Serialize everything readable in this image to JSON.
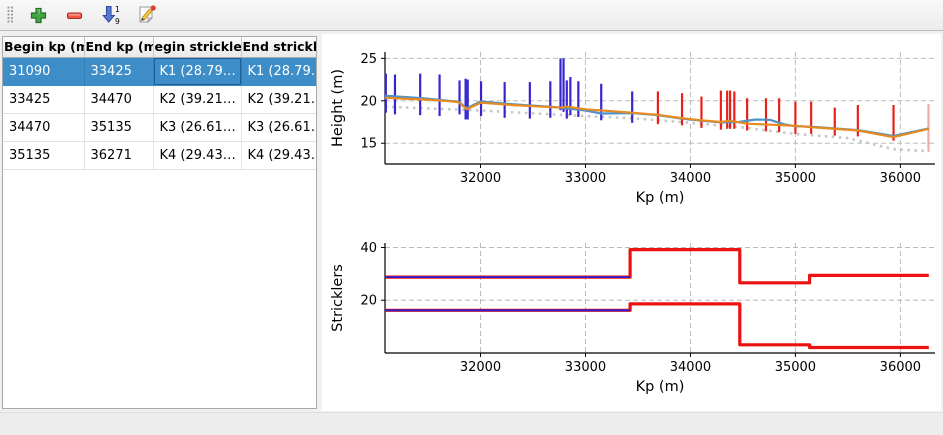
{
  "toolbar": {
    "buttons": [
      {
        "label": "add-zone",
        "icon": "plus-icon"
      },
      {
        "label": "remove-zone",
        "icon": "minus-icon"
      },
      {
        "label": "sort-numeric",
        "icon": "sort-numeric-down-icon"
      },
      {
        "label": "edit",
        "icon": "edit-pencil-icon"
      }
    ]
  },
  "table": {
    "columns": [
      "Begin kp (m)",
      "End kp (m)",
      "egin strickle",
      "End strickler"
    ],
    "rows": [
      [
        "31090",
        "33425",
        "K1 (28.79…",
        "K1 (28.79…"
      ],
      [
        "33425",
        "34470",
        "K2 (39.21…",
        "K2 (39.21…"
      ],
      [
        "34470",
        "35135",
        "K3 (26.61…",
        "K3 (26.61…"
      ],
      [
        "35135",
        "36271",
        "K4 (29.43…",
        "K4 (29.43…"
      ]
    ],
    "selected_row": 0
  },
  "colors": {
    "selection_blue": "#3d8dc8",
    "stem_blue": "#3726cf",
    "stem_red": "#e7211a",
    "stem_pink": "#f2a8a8",
    "line_blue": "#4e92c8",
    "line_orange": "#e78a20",
    "line_gray": "#c7c7c7",
    "strickler_red": "#ec1212",
    "strickler_blue": "#2b1fd6",
    "grid": "#bbbbbb"
  },
  "chart_data": [
    {
      "type": "line",
      "title": "",
      "xlabel": "Kp (m)",
      "ylabel": "Height (m)",
      "xlim": [
        31090,
        36330
      ],
      "ylim": [
        12.55,
        25.75
      ],
      "xticks": [
        32000,
        33000,
        34000,
        35000,
        36000
      ],
      "yticks": [
        15,
        20,
        25
      ],
      "grid": true,
      "legend": "none",
      "series": [
        {
          "name": "bed-dotted-gray",
          "type": "line",
          "style": "dotted",
          "points": [
            [
              31090,
              19.3
            ],
            [
              32000,
              18.85
            ],
            [
              33000,
              18.2
            ],
            [
              33445,
              17.95
            ],
            [
              34000,
              17.4
            ],
            [
              34470,
              16.9
            ],
            [
              35000,
              16.1
            ],
            [
              35500,
              15.6
            ],
            [
              35935,
              14.3
            ],
            [
              36271,
              14.05
            ]
          ]
        },
        {
          "name": "stems-selected-zone",
          "type": "stem",
          "color_key": "stem_blue",
          "stems": [
            [
              31098,
              18.6,
              23.2
            ],
            [
              31185,
              18.4,
              23.1
            ],
            [
              31425,
              18.3,
              23.2
            ],
            [
              31610,
              18.2,
              23.1
            ],
            [
              31800,
              18.4,
              22.4
            ],
            [
              31858,
              17.8,
              22.6
            ],
            [
              31878,
              17.8,
              22.5
            ],
            [
              32005,
              18.2,
              22.3
            ],
            [
              32230,
              18.0,
              22.2
            ],
            [
              32470,
              17.9,
              22.2
            ],
            [
              32665,
              18.0,
              22.3
            ],
            [
              32762,
              18.9,
              25.0
            ],
            [
              32791,
              18.7,
              25.0
            ],
            [
              32822,
              17.9,
              22.4
            ],
            [
              32856,
              18.3,
              22.8
            ],
            [
              32932,
              18.1,
              22.3
            ],
            [
              33150,
              17.7,
              22.0
            ],
            [
              33445,
              17.4,
              21.1
            ]
          ]
        },
        {
          "name": "stems-other-zones",
          "type": "stem",
          "color_key": "stem_red",
          "stems": [
            [
              33690,
              17.25,
              21.1
            ],
            [
              33920,
              17.1,
              20.9
            ],
            [
              34105,
              16.8,
              20.5
            ],
            [
              34290,
              16.6,
              21.2
            ],
            [
              34350,
              16.7,
              21.2
            ],
            [
              34378,
              16.7,
              21.2
            ],
            [
              34418,
              16.7,
              21.1
            ],
            [
              34540,
              16.5,
              20.3
            ],
            [
              34720,
              16.4,
              20.3
            ],
            [
              34845,
              16.3,
              20.3
            ],
            [
              35000,
              16.1,
              19.9
            ],
            [
              35150,
              16.1,
              19.9
            ],
            [
              35375,
              15.9,
              19.2
            ],
            [
              35595,
              15.8,
              19.5
            ],
            [
              35935,
              15.3,
              19.5
            ]
          ]
        },
        {
          "name": "stem-last-faint",
          "type": "stem",
          "color_key": "stem_pink",
          "stems": [
            [
              36268,
              14.0,
              19.6
            ]
          ]
        },
        {
          "name": "height-line-blue",
          "type": "line",
          "color_key": "line_blue",
          "points": [
            [
              31090,
              20.6
            ],
            [
              31450,
              20.3
            ],
            [
              31700,
              20.0
            ],
            [
              31790,
              19.9
            ],
            [
              31868,
              19.1
            ],
            [
              32000,
              19.92
            ],
            [
              32300,
              19.6
            ],
            [
              32600,
              19.35
            ],
            [
              32770,
              19.2
            ],
            [
              33000,
              18.85
            ],
            [
              33150,
              18.5
            ],
            [
              33445,
              18.55
            ],
            [
              33690,
              18.3
            ],
            [
              33920,
              17.9
            ],
            [
              34105,
              17.65
            ],
            [
              34290,
              17.45
            ],
            [
              34460,
              17.5
            ],
            [
              34620,
              17.8
            ],
            [
              34760,
              17.75
            ],
            [
              34900,
              17.2
            ],
            [
              35000,
              17.0
            ],
            [
              35150,
              16.95
            ],
            [
              35595,
              16.55
            ],
            [
              35935,
              15.85
            ],
            [
              36271,
              16.75
            ]
          ]
        },
        {
          "name": "height-line-orange",
          "type": "line",
          "color_key": "line_orange",
          "points": [
            [
              31090,
              20.35
            ],
            [
              31450,
              20.15
            ],
            [
              31700,
              19.95
            ],
            [
              31790,
              19.85
            ],
            [
              31868,
              19.0
            ],
            [
              32000,
              19.78
            ],
            [
              32300,
              19.5
            ],
            [
              32600,
              19.3
            ],
            [
              32770,
              19.18
            ],
            [
              32820,
              19.3
            ],
            [
              33000,
              19.0
            ],
            [
              33445,
              18.6
            ],
            [
              33690,
              18.35
            ],
            [
              33920,
              17.95
            ],
            [
              34105,
              17.7
            ],
            [
              34290,
              17.5
            ],
            [
              34375,
              17.65
            ],
            [
              34540,
              17.3
            ],
            [
              34845,
              17.15
            ],
            [
              35000,
              17.05
            ],
            [
              35150,
              16.9
            ],
            [
              35595,
              16.5
            ],
            [
              35935,
              15.72
            ],
            [
              36271,
              16.7
            ]
          ]
        }
      ]
    },
    {
      "type": "step",
      "title": "",
      "xlabel": "Kp (m)",
      "ylabel": "Stricklers",
      "xlim": [
        31090,
        36330
      ],
      "ylim": [
        0,
        41.7
      ],
      "xticks": [
        32000,
        33000,
        34000,
        35000,
        36000
      ],
      "yticks": [
        20,
        40
      ],
      "grid": true,
      "zones": [
        {
          "begin": 31090,
          "end": 33425,
          "k_minor": 28.79,
          "k_major": 16.2,
          "selected": true
        },
        {
          "begin": 33425,
          "end": 34470,
          "k_minor": 39.21,
          "k_major": 18.6,
          "selected": false
        },
        {
          "begin": 34470,
          "end": 35135,
          "k_minor": 26.61,
          "k_major": 3.1,
          "selected": false
        },
        {
          "begin": 35135,
          "end": 36271,
          "k_minor": 29.43,
          "k_major": 2.1,
          "selected": false
        }
      ]
    }
  ]
}
